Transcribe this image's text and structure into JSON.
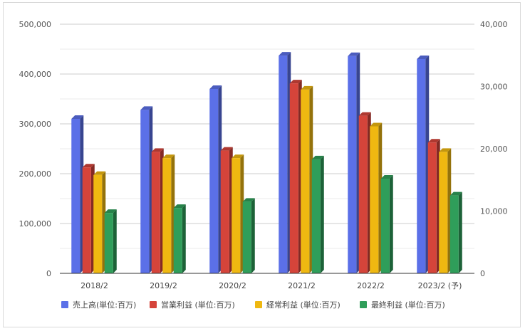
{
  "chart_data": {
    "type": "bar",
    "categories": [
      "2018/2",
      "2019/2",
      "2020/2",
      "2021/2",
      "2022/2",
      "2023/2 (予)"
    ],
    "series": [
      {
        "name": "売上高(単位:百万)",
        "axis": "left",
        "color": "#5b70e8",
        "values": [
          310000,
          328000,
          370000,
          437000,
          436000,
          430000
        ]
      },
      {
        "name": "営業利益 (単位:百万)",
        "axis": "right",
        "color": "#d5443a",
        "values": [
          17000,
          19500,
          19700,
          30500,
          25300,
          21000
        ]
      },
      {
        "name": "経常利益 (単位:百万)",
        "axis": "right",
        "color": "#efb811",
        "values": [
          15800,
          18500,
          18500,
          29500,
          23600,
          19500
        ]
      },
      {
        "name": "最終利益 (単位:百万)",
        "axis": "right",
        "color": "#2f9e5a",
        "values": [
          9700,
          10500,
          11500,
          18300,
          15200,
          12500
        ]
      }
    ],
    "y_left": {
      "ylim": [
        0,
        500000
      ],
      "ticks": [
        "0",
        "100,000",
        "200,000",
        "300,000",
        "400,000",
        "500,000"
      ]
    },
    "y_right": {
      "ylim": [
        0,
        40000
      ],
      "ticks": [
        "0",
        "10,000",
        "20,000",
        "30,000",
        "40,000"
      ]
    },
    "grid": true,
    "legend": "bottom"
  }
}
